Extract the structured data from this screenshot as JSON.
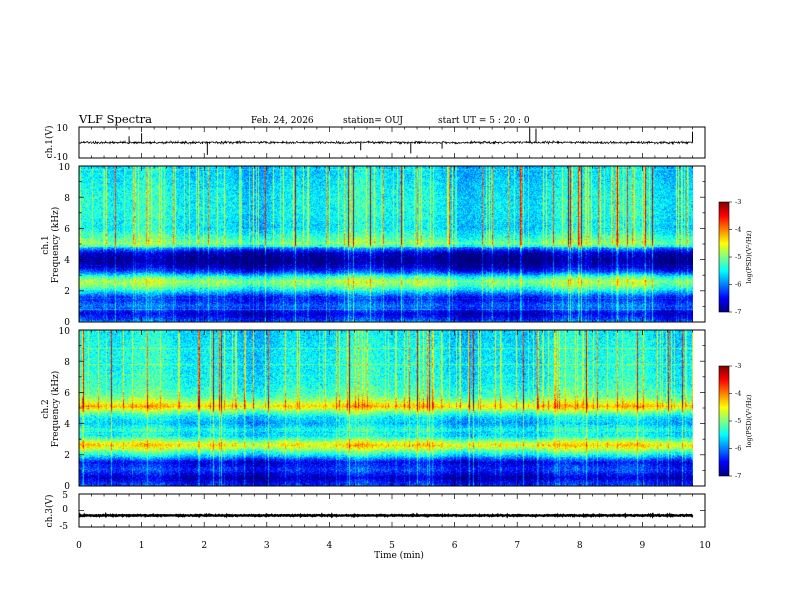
{
  "header": {
    "title": "VLF Spectra",
    "date": "Feb. 24, 2026",
    "station": "station= OUJ",
    "start": "start  UT =   5  : 20 : 0"
  },
  "colors": {
    "colormap": [
      "#00007f",
      "#0000ff",
      "#0080ff",
      "#00ffff",
      "#80ff80",
      "#ffff00",
      "#ff8000",
      "#ff0000",
      "#7f0000"
    ],
    "trace": "#000000"
  },
  "chart_data": [
    {
      "type": "line",
      "name": "ch1-waveform",
      "ylabel": "ch.1(V)",
      "ylim": [
        -10,
        10
      ],
      "yticks": [
        "10",
        "-10"
      ],
      "xlim": [
        0,
        10
      ],
      "baseline": 0,
      "noise_amplitude": 1.2,
      "spikes": [
        {
          "x": 0.8,
          "y": 4
        },
        {
          "x": 1.0,
          "y": 6
        },
        {
          "x": 2.05,
          "y": -8
        },
        {
          "x": 4.5,
          "y": -5
        },
        {
          "x": 5.3,
          "y": -7
        },
        {
          "x": 5.8,
          "y": -4
        },
        {
          "x": 7.2,
          "y": 9
        },
        {
          "x": 7.3,
          "y": 9
        },
        {
          "x": 9.8,
          "y": 7
        }
      ]
    },
    {
      "type": "heatmap",
      "name": "ch1-spectrogram",
      "ylabel": "ch.1",
      "ylabel2": "Frequency  (kHz)",
      "ylim": [
        0,
        10
      ],
      "yticks": [
        "0",
        "2",
        "4",
        "6",
        "8",
        "10"
      ],
      "xlim": [
        0,
        9.8
      ],
      "zlim": [
        -7,
        -3
      ],
      "colorbar_ticks": [
        "-3",
        "-4",
        "-5",
        "-6",
        "-7"
      ],
      "colorbar_label": "log(PSD)(V²/Hz)",
      "profile_khz": [
        0,
        0.5,
        1.0,
        1.5,
        2.0,
        2.3,
        2.6,
        2.9,
        3.2,
        3.6,
        4.0,
        4.4,
        4.7,
        5.0,
        5.3,
        6.0,
        7.0,
        8.0,
        9.0,
        9.9
      ],
      "profile_level": [
        -6.2,
        -6.7,
        -6.1,
        -6.5,
        -5.6,
        -5.1,
        -4.9,
        -5.4,
        -6.3,
        -6.9,
        -7.0,
        -6.8,
        -6.1,
        -5.0,
        -5.2,
        -5.6,
        -5.5,
        -5.5,
        -5.6,
        -5.7
      ],
      "sferic_activity": 0.55
    },
    {
      "type": "heatmap",
      "name": "ch2-spectrogram",
      "ylabel": "ch.2",
      "ylabel2": "Frequency  (kHz)",
      "ylim": [
        0,
        10
      ],
      "yticks": [
        "0",
        "2",
        "4",
        "6",
        "8",
        "10"
      ],
      "xlim": [
        0,
        9.8
      ],
      "zlim": [
        -7,
        -3
      ],
      "colorbar_ticks": [
        "-3",
        "-4",
        "-5",
        "-6",
        "-7"
      ],
      "colorbar_label": "log(PSD)(V²/Hz)",
      "profile_khz": [
        0,
        0.5,
        1.0,
        1.5,
        2.0,
        2.3,
        2.6,
        2.9,
        3.2,
        3.6,
        4.0,
        4.4,
        4.8,
        5.1,
        5.4,
        5.8,
        6.5,
        7.5,
        8.5,
        9.9
      ],
      "profile_level": [
        -6.3,
        -6.8,
        -6.3,
        -6.6,
        -5.5,
        -5.0,
        -4.4,
        -5.0,
        -5.6,
        -5.4,
        -5.8,
        -5.6,
        -5.0,
        -4.3,
        -4.8,
        -5.2,
        -5.4,
        -5.5,
        -5.5,
        -5.6
      ],
      "sferic_activity": 0.45
    },
    {
      "type": "line",
      "name": "ch3-waveform",
      "ylabel": "ch.3(V)",
      "ylim": [
        -5,
        5
      ],
      "yticks": [
        "5",
        "0",
        "-5"
      ],
      "xlim": [
        0,
        10
      ],
      "baseline": -1.5,
      "noise_amplitude": 0.25,
      "xticks": [
        "0",
        "1",
        "2",
        "3",
        "4",
        "5",
        "6",
        "7",
        "8",
        "9",
        "10"
      ],
      "xlabel": "Time  (min)"
    }
  ]
}
